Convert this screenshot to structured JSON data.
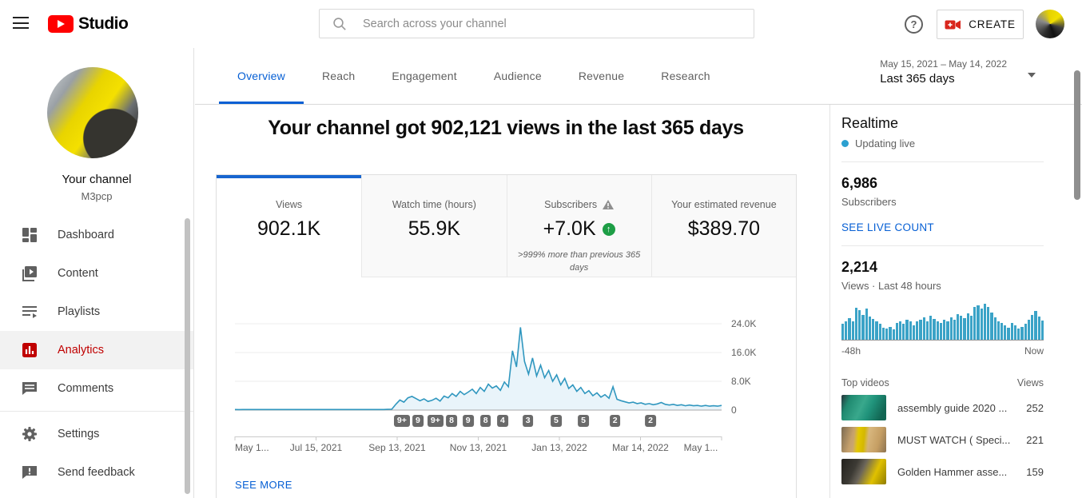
{
  "topbar": {
    "logo_text": "Studio",
    "search_placeholder": "Search across your channel",
    "help_glyph": "?",
    "create_label": "CREATE"
  },
  "sidebar": {
    "channel_title": "Your channel",
    "channel_name": "M3pcp",
    "items": [
      {
        "label": "Dashboard"
      },
      {
        "label": "Content"
      },
      {
        "label": "Playlists"
      },
      {
        "label": "Analytics",
        "active": true
      },
      {
        "label": "Comments"
      }
    ],
    "footer_items": [
      {
        "label": "Settings"
      },
      {
        "label": "Send feedback"
      }
    ]
  },
  "tabs": {
    "items": [
      "Overview",
      "Reach",
      "Engagement",
      "Audience",
      "Revenue",
      "Research"
    ],
    "active": "Overview"
  },
  "daterange": {
    "range": "May 15, 2021 – May 14, 2022",
    "preset": "Last 365 days"
  },
  "headline": "Your channel got 902,121 views in the last 365 days",
  "stats": {
    "cards": [
      {
        "label": "Views",
        "value": "902.1K",
        "active": true
      },
      {
        "label": "Watch time (hours)",
        "value": "55.9K"
      },
      {
        "label": "Subscribers",
        "value": "+7.0K",
        "warning": true,
        "up": true,
        "delta_note": ">999% more than previous 365 days"
      },
      {
        "label": "Your estimated revenue",
        "value": "$389.70"
      }
    ]
  },
  "see_more": "SEE MORE",
  "chart_data": [
    {
      "type": "area",
      "title": "Channel daily views, last 365 days",
      "x_axis_labels": [
        "May 1...",
        "Jul 15, 2021",
        "Sep 13, 2021",
        "Nov 13, 2021",
        "Jan 13, 2022",
        "Mar 14, 2022",
        "May 1..."
      ],
      "y_ticks": [
        "0",
        "8.0K",
        "16.0K",
        "24.0K"
      ],
      "ylim": [
        0,
        24000
      ],
      "grid": true,
      "line_color": "#3097bf",
      "fill_color": "#e9f4fa",
      "values": [
        150,
        140,
        155,
        145,
        150,
        160,
        150,
        145,
        155,
        150,
        148,
        152,
        150,
        146,
        154,
        150,
        145,
        150,
        155,
        150,
        148,
        150,
        152,
        148,
        150,
        153,
        147,
        150,
        152,
        150,
        148,
        151,
        150,
        149,
        152,
        150,
        148,
        150,
        200,
        250,
        1600,
        2800,
        2200,
        3400,
        3800,
        3200,
        2600,
        3100,
        2400,
        2700,
        3300,
        2500,
        3900,
        3400,
        4600,
        3800,
        5200,
        4300,
        5000,
        5800,
        4600,
        6300,
        5200,
        7200,
        6100,
        6700,
        5500,
        7800,
        6500,
        16500,
        12000,
        23000,
        13500,
        10000,
        14500,
        9500,
        12500,
        9000,
        11000,
        8000,
        9800,
        7000,
        8800,
        6000,
        7000,
        5200,
        6300,
        4600,
        5400,
        4000,
        4800,
        3600,
        4300,
        3300,
        6500,
        3000,
        2600,
        2300,
        2000,
        2200,
        1800,
        2000,
        1600,
        1800,
        1500,
        1700,
        2100,
        1600,
        1400,
        1600,
        1300,
        1500,
        1200,
        1400,
        1200,
        1300,
        1100,
        1300,
        1100,
        1200,
        1100,
        1300
      ],
      "markers": [
        {
          "label": "9+",
          "f": 0.343
        },
        {
          "label": "9",
          "f": 0.376
        },
        {
          "label": "9+",
          "f": 0.412
        },
        {
          "label": "8",
          "f": 0.445
        },
        {
          "label": "9",
          "f": 0.479
        },
        {
          "label": "8",
          "f": 0.515
        },
        {
          "label": "4",
          "f": 0.55
        },
        {
          "label": "3",
          "f": 0.602
        },
        {
          "label": "5",
          "f": 0.66
        },
        {
          "label": "5",
          "f": 0.716
        },
        {
          "label": "2",
          "f": 0.781
        },
        {
          "label": "2",
          "f": 0.854
        }
      ]
    },
    {
      "type": "bar",
      "title": "Views last 48 hours",
      "x_left": "-48h",
      "x_right": "Now",
      "bar_color": "#3ba3c7",
      "relative_heights": [
        0.45,
        0.52,
        0.6,
        0.5,
        0.88,
        0.82,
        0.7,
        0.86,
        0.64,
        0.58,
        0.5,
        0.44,
        0.34,
        0.3,
        0.36,
        0.28,
        0.46,
        0.52,
        0.44,
        0.56,
        0.5,
        0.4,
        0.52,
        0.56,
        0.62,
        0.52,
        0.66,
        0.58,
        0.5,
        0.46,
        0.56,
        0.5,
        0.62,
        0.56,
        0.72,
        0.66,
        0.6,
        0.74,
        0.66,
        0.92,
        0.96,
        0.86,
        1.0,
        0.9,
        0.76,
        0.62,
        0.52,
        0.46,
        0.4,
        0.34,
        0.46,
        0.4,
        0.3,
        0.36,
        0.44,
        0.56,
        0.7,
        0.8,
        0.64,
        0.54
      ]
    }
  ],
  "realtime": {
    "title": "Realtime",
    "status": "Updating live",
    "subscribers": "6,986",
    "subscribers_label": "Subscribers",
    "live_count_link": "SEE LIVE COUNT",
    "views": "2,214",
    "views_label": "Views · Last 48 hours",
    "axis_left": "-48h",
    "axis_right": "Now",
    "top_videos": {
      "header_left": "Top videos",
      "header_right": "Views",
      "rows": [
        {
          "title": "assembly guide 2020 ...",
          "views": "252"
        },
        {
          "title": "MUST WATCH ( Speci...",
          "views": "221"
        },
        {
          "title": "Golden Hammer asse...",
          "views": "159"
        }
      ]
    }
  },
  "colors": {
    "accent_blue": "#065fd4",
    "active_metric_bar": "#1765cf",
    "brand_red": "#ff0000",
    "analytics_red": "#c00000",
    "chart_line": "#3097bf",
    "live_dot": "#2ba0d0",
    "positive_green": "#1e9e46"
  }
}
